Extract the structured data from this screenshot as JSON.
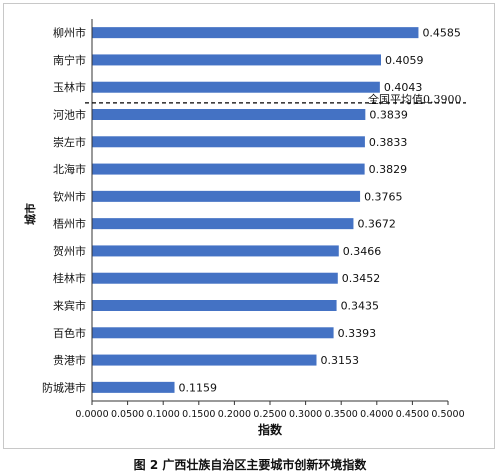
{
  "chart_data": {
    "type": "bar",
    "orientation": "horizontal",
    "categories": [
      "柳州市",
      "南宁市",
      "玉林市",
      "河池市",
      "崇左市",
      "北海市",
      "钦州市",
      "梧州市",
      "贺州市",
      "桂林市",
      "来宾市",
      "百色市",
      "贵港市",
      "防城港市"
    ],
    "values": [
      0.4585,
      0.4059,
      0.4043,
      0.3839,
      0.3833,
      0.3829,
      0.3765,
      0.3672,
      0.3466,
      0.3452,
      0.3435,
      0.3393,
      0.3153,
      0.1159
    ],
    "value_labels": [
      "0.4585",
      "0.4059",
      "0.4043",
      "0.3839",
      "0.3833",
      "0.3829",
      "0.3765",
      "0.3672",
      "0.3466",
      "0.3452",
      "0.3435",
      "0.3393",
      "0.3153",
      "0.1159"
    ],
    "xlabel": "指数",
    "ylabel": "城市",
    "xlim": [
      0,
      0.5
    ],
    "x_ticks": [
      "0.0000",
      "0.0500",
      "0.1000",
      "0.1500",
      "0.2000",
      "0.2500",
      "0.3000",
      "0.3500",
      "0.4000",
      "0.4500",
      "0.5000"
    ],
    "reference_line": {
      "label": "全国平均值0.3900",
      "value": 0.39
    },
    "grid": false,
    "bar_color": "#4472c4"
  },
  "caption": "图 2 广西壮族自治区主要城市创新环境指数"
}
